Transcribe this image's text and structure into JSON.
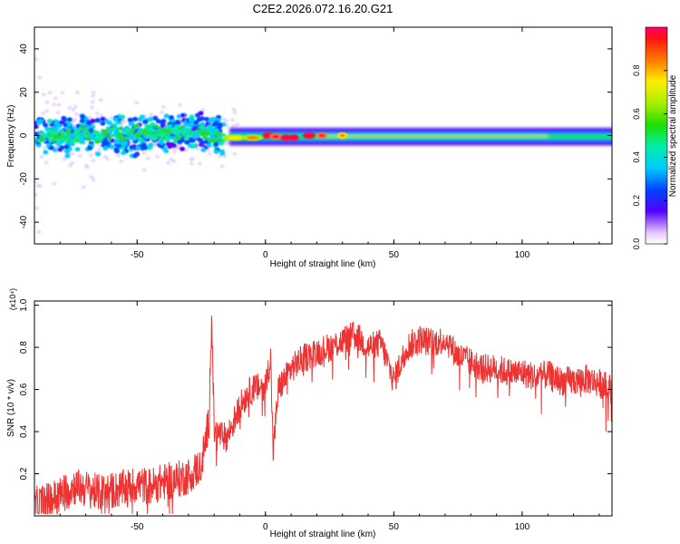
{
  "title": "C2E2.2026.072.16.20.G21",
  "chart_data": [
    {
      "type": "heatmap",
      "xlabel": "Height of straight line (km)",
      "ylabel": "Frequency (Hz)",
      "xlim": [
        -90,
        135
      ],
      "ylim": [
        -50,
        50
      ],
      "xticks": [
        -50,
        0,
        50,
        100
      ],
      "yticks": [
        -40,
        -20,
        0,
        20,
        40
      ],
      "colorbar": {
        "label": "Normalized spectral amplitude",
        "range": [
          0,
          1
        ],
        "ticks": [
          "0.0",
          "0.2",
          "0.4",
          "0.6",
          "0.8"
        ]
      },
      "description_regions": [
        {
          "x_from": -90,
          "x_to": -15,
          "freq_center": 0,
          "amplitude": "scattered, mostly 0.1-0.4"
        },
        {
          "x_from": -15,
          "x_to": 25,
          "freq_center": -1,
          "amplitude": "peaks near 1.0 at 0, 8, 17 km"
        },
        {
          "x_from": 25,
          "x_to": 135,
          "freq_center": 0,
          "amplitude": "continuous band 0.3-0.6"
        }
      ]
    },
    {
      "type": "line",
      "xlabel": "Height of straight line (km)",
      "ylabel": "SNR (10 * v/v)",
      "multiplier": "(x10⁴)",
      "xlim": [
        -90,
        135
      ],
      "ylim": [
        0,
        1.02
      ],
      "xticks": [
        -50,
        0,
        50,
        100
      ],
      "yticks": [
        "0.2",
        "0.4",
        "0.6",
        "0.8",
        "1.0"
      ],
      "color": "#ee3333",
      "series": [
        {
          "name": "SNR",
          "x": [
            -90,
            -85,
            -80,
            -75,
            -70,
            -65,
            -60,
            -55,
            -50,
            -45,
            -40,
            -35,
            -30,
            -25,
            -22,
            -21,
            -20,
            -15,
            -10,
            -7,
            -5,
            0,
            2,
            3,
            5,
            10,
            15,
            20,
            25,
            30,
            35,
            40,
            45,
            50,
            55,
            60,
            65,
            70,
            75,
            80,
            85,
            90,
            95,
            100,
            105,
            110,
            115,
            120,
            125,
            130,
            135
          ],
          "y": [
            0.05,
            0.07,
            0.1,
            0.14,
            0.13,
            0.11,
            0.12,
            0.13,
            0.15,
            0.14,
            0.16,
            0.17,
            0.19,
            0.24,
            0.45,
            0.98,
            0.4,
            0.37,
            0.52,
            0.58,
            0.6,
            0.62,
            0.75,
            0.3,
            0.6,
            0.7,
            0.75,
            0.78,
            0.8,
            0.83,
            0.86,
            0.8,
            0.82,
            0.64,
            0.8,
            0.84,
            0.82,
            0.84,
            0.76,
            0.73,
            0.7,
            0.7,
            0.68,
            0.68,
            0.66,
            0.67,
            0.64,
            0.64,
            0.65,
            0.63,
            0.6
          ]
        }
      ]
    }
  ]
}
